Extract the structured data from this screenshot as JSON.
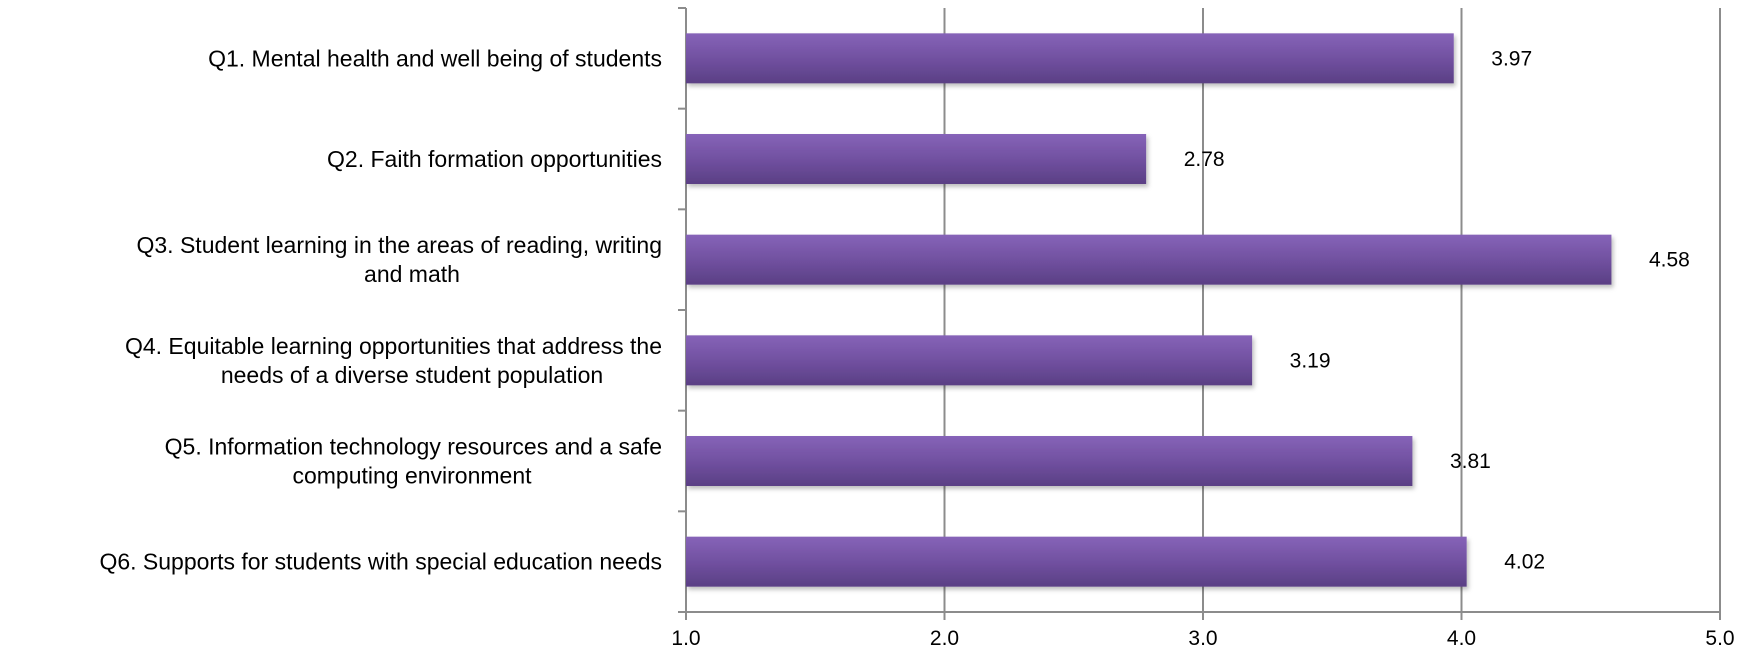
{
  "chart_data": {
    "type": "bar",
    "orientation": "horizontal",
    "categories": [
      [
        "Q1. Mental health and well being of students"
      ],
      [
        "Q2. Faith formation opportunities"
      ],
      [
        "Q3. Student learning in the areas of reading, writing",
        "and math"
      ],
      [
        "Q4. Equitable learning opportunities that address the",
        "needs of a diverse student population"
      ],
      [
        "Q5. Information technology resources and a safe",
        "computing environment"
      ],
      [
        "Q6. Supports for students with special education needs"
      ]
    ],
    "values": [
      3.97,
      2.78,
      4.58,
      3.19,
      3.81,
      4.02
    ],
    "value_labels": [
      "3.97",
      "2.78",
      "4.58",
      "3.19",
      "3.81",
      "4.02"
    ],
    "xlim": [
      1.0,
      5.0
    ],
    "ticks": [
      1.0,
      2.0,
      3.0,
      4.0,
      5.0
    ],
    "tick_labels": [
      "1.0",
      "2.0",
      "3.0",
      "4.0",
      "5.0"
    ],
    "grid": true,
    "bar_color": "#7655A8",
    "grid_color": "#8c8c8c"
  }
}
